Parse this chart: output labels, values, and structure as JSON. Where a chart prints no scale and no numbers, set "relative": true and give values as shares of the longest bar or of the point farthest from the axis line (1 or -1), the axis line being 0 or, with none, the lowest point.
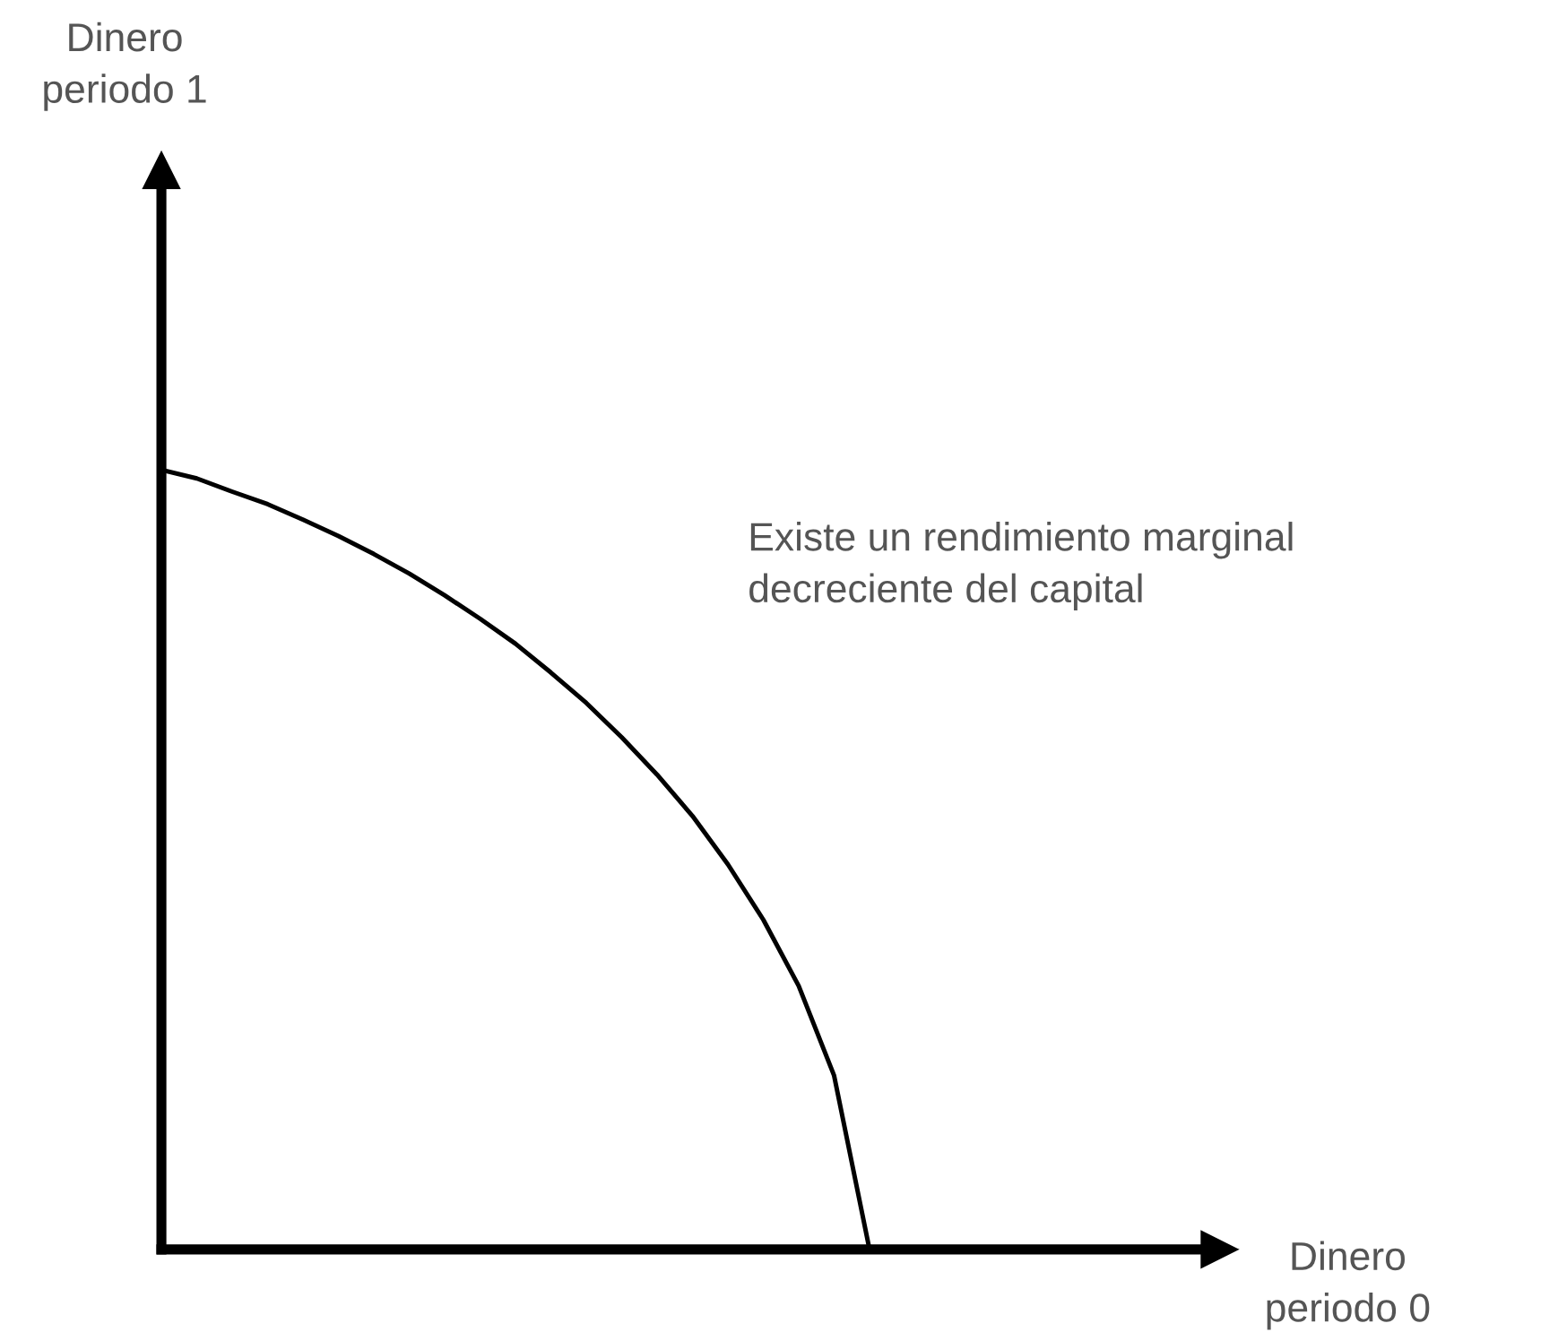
{
  "chart_data": {
    "type": "line",
    "relative": true,
    "annotations": [
      "Dinero\nperiodo 1",
      "Existe un rendimiento marginal\ndecreciente del capital",
      "Dinero\nperiodo 0"
    ],
    "categories": [
      null,
      null,
      null,
      null,
      null,
      null,
      null,
      null,
      null,
      null,
      null,
      null,
      null,
      null,
      null,
      null,
      null,
      null,
      null,
      null,
      null
    ],
    "series": [
      {
        "color": "#000000",
        "values": [
          1,
          0.989,
          0.972,
          0.956,
          0.936,
          0.915,
          0.892,
          0.867,
          0.839,
          0.809,
          0.777,
          0.74,
          0.701,
          0.657,
          0.609,
          0.556,
          0.494,
          0.423,
          0.338,
          0.223,
          0
        ]
      }
    ],
    "legend": false,
    "marker": "none",
    "line_style": "solid"
  }
}
